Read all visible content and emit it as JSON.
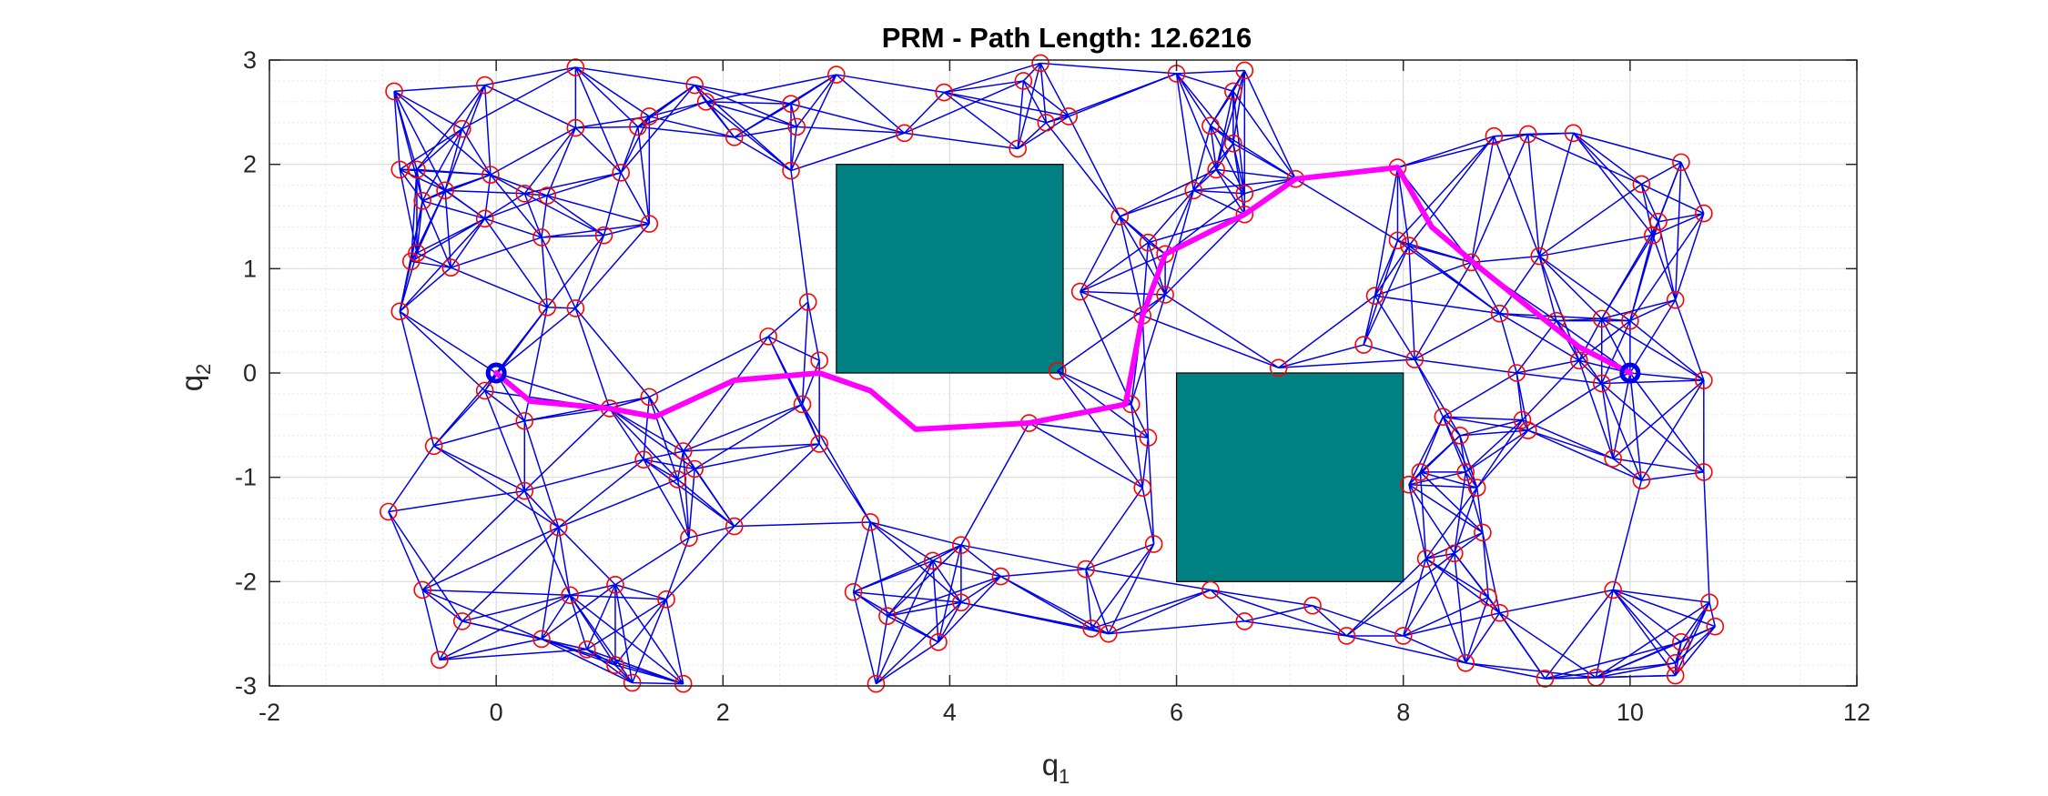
{
  "chart_data": {
    "type": "scatter",
    "title": "PRM - Path Length: 12.6216",
    "xlabel": {
      "text": "q",
      "sub": "1"
    },
    "ylabel": {
      "text": "q",
      "sub": "2"
    },
    "xlim": [
      -2,
      12
    ],
    "ylim": [
      -3,
      3
    ],
    "xticks": [
      -2,
      0,
      2,
      4,
      6,
      8,
      10,
      12
    ],
    "yticks": [
      -3,
      -2,
      -1,
      0,
      1,
      2,
      3
    ],
    "grid": true,
    "minor_grid": true,
    "colors": {
      "nodes": "#ff0000",
      "edges": "#0000e6",
      "path": "#ff00ff",
      "obstacles": "#008080",
      "endpoints": "#0000e6"
    },
    "obstacles": [
      {
        "x": [
          3,
          5
        ],
        "y": [
          0,
          2
        ]
      },
      {
        "x": [
          6,
          8
        ],
        "y": [
          -2,
          0
        ]
      }
    ],
    "start": [
      0,
      0
    ],
    "goal": [
      10,
      0
    ],
    "nodes": [
      [
        -0.9,
        2.7
      ],
      [
        -0.1,
        2.76
      ],
      [
        0.7,
        2.93
      ],
      [
        1.75,
        2.76
      ],
      [
        2.6,
        2.58
      ],
      [
        3.0,
        2.86
      ],
      [
        3.95,
        2.69
      ],
      [
        4.65,
        2.8
      ],
      [
        4.8,
        2.97
      ],
      [
        5.05,
        2.46
      ],
      [
        4.6,
        2.15
      ],
      [
        4.85,
        2.4
      ],
      [
        3.6,
        2.3
      ],
      [
        2.65,
        2.36
      ],
      [
        2.6,
        1.94
      ],
      [
        2.1,
        2.26
      ],
      [
        1.85,
        2.6
      ],
      [
        1.25,
        2.36
      ],
      [
        1.35,
        2.46
      ],
      [
        0.7,
        2.35
      ],
      [
        -0.3,
        2.34
      ],
      [
        -0.85,
        1.95
      ],
      [
        -0.7,
        1.95
      ],
      [
        -0.65,
        1.65
      ],
      [
        -0.45,
        1.75
      ],
      [
        -0.05,
        1.9
      ],
      [
        -0.1,
        1.48
      ],
      [
        0.4,
        1.3
      ],
      [
        0.45,
        1.7
      ],
      [
        0.25,
        1.72
      ],
      [
        0.95,
        1.32
      ],
      [
        1.1,
        1.92
      ],
      [
        1.35,
        1.43
      ],
      [
        -0.7,
        1.15
      ],
      [
        -0.75,
        1.07
      ],
      [
        -0.4,
        1.01
      ],
      [
        -0.85,
        0.59
      ],
      [
        0.45,
        0.63
      ],
      [
        0.7,
        0.62
      ],
      [
        -0.1,
        -0.17
      ],
      [
        0.25,
        -0.46
      ],
      [
        0.25,
        -1.13
      ],
      [
        -0.55,
        -0.7
      ],
      [
        1.0,
        -0.34
      ],
      [
        1.35,
        -0.23
      ],
      [
        1.3,
        -0.83
      ],
      [
        1.65,
        -0.75
      ],
      [
        1.6,
        -1.02
      ],
      [
        1.75,
        -0.92
      ],
      [
        1.7,
        -1.58
      ],
      [
        2.1,
        -1.47
      ],
      [
        0.55,
        -1.48
      ],
      [
        -0.95,
        -1.33
      ],
      [
        -0.65,
        -2.08
      ],
      [
        -0.3,
        -2.38
      ],
      [
        -0.5,
        -2.75
      ],
      [
        0.4,
        -2.55
      ],
      [
        0.65,
        -2.13
      ],
      [
        1.05,
        -2.03
      ],
      [
        0.8,
        -2.65
      ],
      [
        1.2,
        -2.97
      ],
      [
        1.5,
        -2.17
      ],
      [
        1.65,
        -2.98
      ],
      [
        1.05,
        -2.8
      ],
      [
        2.4,
        0.35
      ],
      [
        2.75,
        0.68
      ],
      [
        2.85,
        0.12
      ],
      [
        2.7,
        -0.3
      ],
      [
        2.85,
        -0.68
      ],
      [
        3.3,
        -1.43
      ],
      [
        3.15,
        -2.1
      ],
      [
        3.45,
        -2.33
      ],
      [
        3.35,
        -2.98
      ],
      [
        3.85,
        -1.8
      ],
      [
        3.9,
        -2.58
      ],
      [
        4.1,
        -1.65
      ],
      [
        4.1,
        -2.2
      ],
      [
        4.45,
        -1.95
      ],
      [
        4.7,
        -0.48
      ],
      [
        4.95,
        0.02
      ],
      [
        5.15,
        0.78
      ],
      [
        5.2,
        -1.88
      ],
      [
        5.25,
        -2.45
      ],
      [
        5.4,
        -2.5
      ],
      [
        5.5,
        1.5
      ],
      [
        5.7,
        0.55
      ],
      [
        5.75,
        -0.62
      ],
      [
        5.7,
        -1.1
      ],
      [
        5.8,
        -1.64
      ],
      [
        5.6,
        -0.3
      ],
      [
        5.9,
        1.14
      ],
      [
        5.9,
        0.75
      ],
      [
        5.75,
        1.25
      ],
      [
        6.0,
        2.87
      ],
      [
        6.6,
        2.9
      ],
      [
        6.5,
        2.7
      ],
      [
        6.3,
        2.37
      ],
      [
        6.5,
        2.2
      ],
      [
        6.15,
        1.75
      ],
      [
        6.35,
        1.95
      ],
      [
        6.6,
        1.72
      ],
      [
        6.6,
        1.52
      ],
      [
        7.05,
        1.86
      ],
      [
        7.95,
        1.97
      ],
      [
        6.9,
        0.05
      ],
      [
        6.3,
        -2.08
      ],
      [
        6.6,
        -2.38
      ],
      [
        7.2,
        -2.23
      ],
      [
        7.5,
        -2.52
      ],
      [
        8.0,
        -2.52
      ],
      [
        7.65,
        0.27
      ],
      [
        7.75,
        0.74
      ],
      [
        7.95,
        1.27
      ],
      [
        8.05,
        1.22
      ],
      [
        8.1,
        0.13
      ],
      [
        8.15,
        -0.95
      ],
      [
        8.05,
        -1.07
      ],
      [
        8.2,
        -1.78
      ],
      [
        8.45,
        -1.73
      ],
      [
        8.55,
        -2.78
      ],
      [
        8.7,
        -1.53
      ],
      [
        8.75,
        -2.15
      ],
      [
        8.85,
        -2.3
      ],
      [
        8.6,
        1.06
      ],
      [
        8.8,
        2.27
      ],
      [
        9.1,
        2.29
      ],
      [
        9.5,
        2.3
      ],
      [
        9.2,
        1.12
      ],
      [
        8.85,
        0.57
      ],
      [
        9.0,
        0.0
      ],
      [
        9.05,
        -0.45
      ],
      [
        9.1,
        -0.55
      ],
      [
        9.35,
        0.5
      ],
      [
        9.75,
        0.52
      ],
      [
        9.55,
        0.12
      ],
      [
        9.75,
        -0.1
      ],
      [
        9.85,
        -0.82
      ],
      [
        10.0,
        0.5
      ],
      [
        10.1,
        1.81
      ],
      [
        10.2,
        1.32
      ],
      [
        10.45,
        2.02
      ],
      [
        10.25,
        1.45
      ],
      [
        10.65,
        1.53
      ],
      [
        10.4,
        0.7
      ],
      [
        10.65,
        -0.07
      ],
      [
        10.1,
        -1.03
      ],
      [
        10.65,
        -0.95
      ],
      [
        8.35,
        -0.42
      ],
      [
        8.5,
        -0.6
      ],
      [
        8.55,
        -0.95
      ],
      [
        8.65,
        -1.1
      ],
      [
        9.25,
        -2.93
      ],
      [
        9.7,
        -2.92
      ],
      [
        9.85,
        -2.08
      ],
      [
        10.45,
        -2.58
      ],
      [
        10.4,
        -2.78
      ],
      [
        10.4,
        -2.9
      ],
      [
        10.7,
        -2.2
      ],
      [
        10.75,
        -2.43
      ]
    ],
    "path": [
      [
        0,
        0
      ],
      [
        0.3,
        -0.27
      ],
      [
        1.0,
        -0.34
      ],
      [
        1.4,
        -0.42
      ],
      [
        2.1,
        -0.07
      ],
      [
        2.85,
        0.0
      ],
      [
        3.3,
        -0.17
      ],
      [
        3.7,
        -0.54
      ],
      [
        4.7,
        -0.48
      ],
      [
        5.55,
        -0.3
      ],
      [
        5.7,
        0.55
      ],
      [
        5.9,
        1.14
      ],
      [
        6.6,
        1.52
      ],
      [
        7.05,
        1.86
      ],
      [
        7.95,
        1.97
      ],
      [
        8.25,
        1.4
      ],
      [
        8.65,
        1.03
      ],
      [
        9.2,
        0.55
      ],
      [
        9.55,
        0.25
      ],
      [
        10,
        0
      ]
    ]
  }
}
